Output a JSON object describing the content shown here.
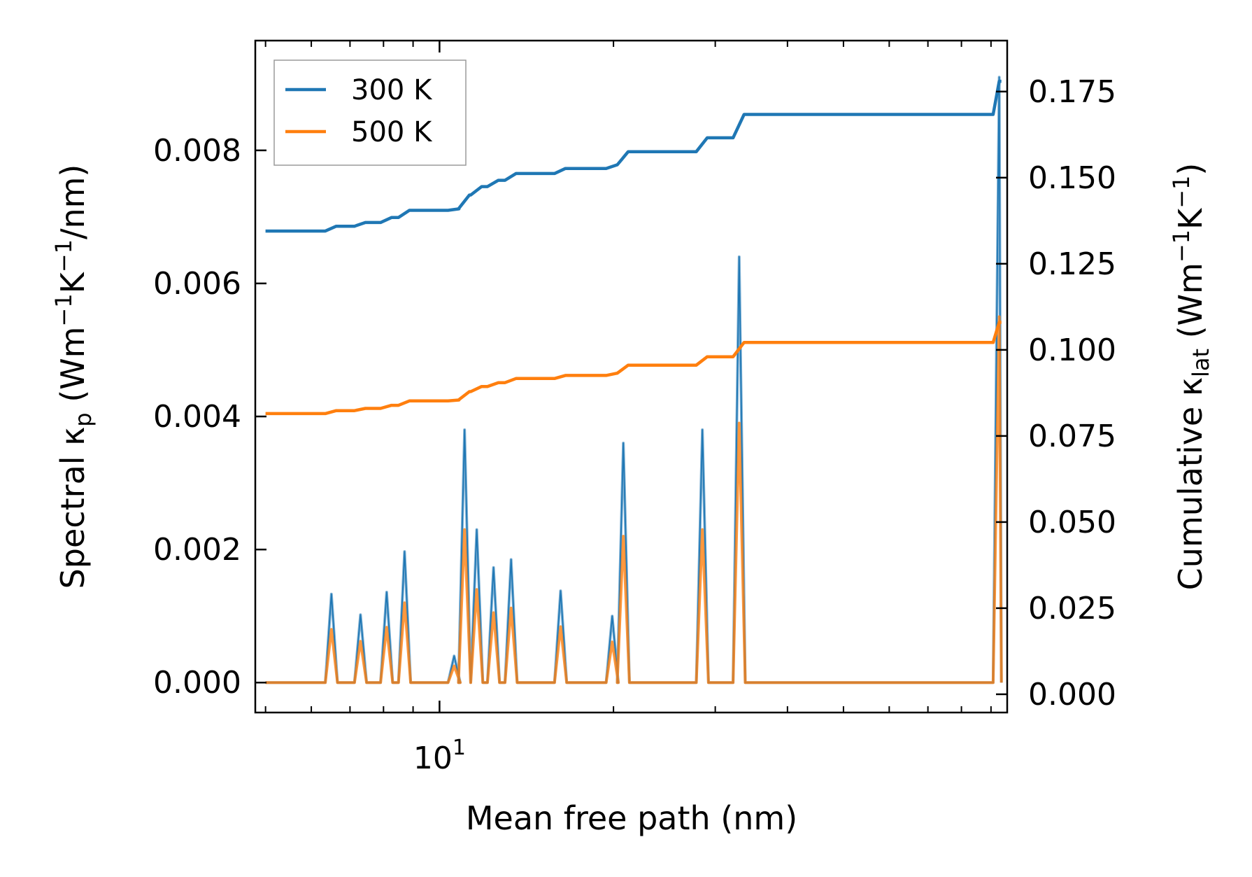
{
  "chart_data": {
    "type": "line",
    "x_scale": "log",
    "xlabel": "Mean free path (nm)",
    "xlim": [
      4.8,
      96
    ],
    "x_ticks": [
      {
        "value": 10,
        "base": "10",
        "exp": "1"
      }
    ],
    "y_left": {
      "label_main": "Spectral κ",
      "label_sub": "p",
      "label_units": " (Wm",
      "label_sup1": "−1",
      "label_mid": "K",
      "label_sup2": "−1",
      "label_tail": "/nm)",
      "ylim": [
        -0.00045,
        0.00965
      ],
      "ticks": [
        0.0,
        0.002,
        0.004,
        0.006,
        0.008
      ],
      "tick_labels": [
        "0.000",
        "0.002",
        "0.004",
        "0.006",
        "0.008"
      ]
    },
    "y_right": {
      "label_main": "Cumulative κ",
      "label_sub": "lat",
      "label_units": " (Wm",
      "label_sup1": "−1",
      "label_mid": "K",
      "label_sup2": "−1",
      "label_tail": ")",
      "ylim": [
        -0.0053,
        0.1898
      ],
      "ticks": [
        0.0,
        0.025,
        0.05,
        0.075,
        0.1,
        0.125,
        0.15,
        0.175
      ],
      "tick_labels": [
        "0.000",
        "0.025",
        "0.050",
        "0.075",
        "0.100",
        "0.125",
        "0.150",
        "0.175"
      ]
    },
    "legend": {
      "position": "top-left",
      "entries": [
        "300 K",
        "500 K"
      ]
    },
    "colors": {
      "300 K": "#1f77b4",
      "500 K": "#ff7f0e"
    },
    "spectral_peaks": [
      {
        "x": 6.5,
        "k300": 0.00133,
        "k500": 0.0008
      },
      {
        "x": 7.3,
        "k300": 0.00102,
        "k500": 0.00062
      },
      {
        "x": 8.1,
        "k300": 0.00136,
        "k500": 0.00083
      },
      {
        "x": 8.7,
        "k300": 0.00197,
        "k500": 0.0012
      },
      {
        "x": 10.6,
        "k300": 0.0004,
        "k500": 0.00025
      },
      {
        "x": 11.05,
        "k300": 0.0038,
        "k500": 0.0023
      },
      {
        "x": 11.6,
        "k300": 0.0023,
        "k500": 0.0014
      },
      {
        "x": 12.4,
        "k300": 0.00173,
        "k500": 0.00105
      },
      {
        "x": 13.3,
        "k300": 0.00185,
        "k500": 0.00112
      },
      {
        "x": 16.2,
        "k300": 0.00138,
        "k500": 0.00084
      },
      {
        "x": 19.9,
        "k300": 0.001,
        "k500": 0.00061
      },
      {
        "x": 20.8,
        "k300": 0.0036,
        "k500": 0.0022
      },
      {
        "x": 28.5,
        "k300": 0.0038,
        "k500": 0.0023
      },
      {
        "x": 33.0,
        "k300": 0.0064,
        "k500": 0.0039
      },
      {
        "x": 93.0,
        "k300": 0.0091,
        "k500": 0.0055
      }
    ],
    "cumulative_start": {
      "300 K": 0.1345,
      "500 K": 0.0815
    },
    "cumulative_end": {
      "300 K": 0.178,
      "500 K": 0.108
    }
  }
}
